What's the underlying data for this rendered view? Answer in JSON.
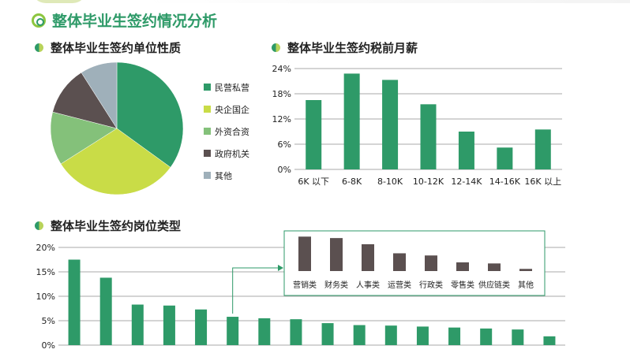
{
  "colors": {
    "green": "#2e9a68",
    "lime": "#c9dc47",
    "light_green": "#84c17a",
    "dark_brown": "#5b5050",
    "slate": "#9fb0ba"
  },
  "header": {
    "main_title": "整体毕业生签约情况分析"
  },
  "sections": {
    "unit": {
      "title": "整体毕业生签约单位性质"
    },
    "salary": {
      "title": "整体毕业生签约税前月薪"
    },
    "position": {
      "title": "整体毕业生签约岗位类型"
    }
  },
  "chart_data": [
    {
      "type": "pie",
      "labels": [
        "民营私营",
        "央企国企",
        "外资合资",
        "政府机关",
        "其他"
      ],
      "values": [
        35,
        31,
        13,
        12,
        9
      ],
      "colors": [
        "#2e9a68",
        "#c9dc47",
        "#84c17a",
        "#5b5050",
        "#9fb0ba"
      ],
      "legend_position": "right"
    },
    {
      "type": "bar",
      "categories": [
        "6K 以下",
        "6-8K",
        "8-10K",
        "10-12K",
        "12-14K",
        "14-16K",
        "16K 以上"
      ],
      "values": [
        16.5,
        22.8,
        21.3,
        15.5,
        9.0,
        5.2,
        9.5
      ],
      "yticks": [
        "24%",
        "18%",
        "12%",
        "6%",
        "0%"
      ],
      "ylim": [
        0,
        24
      ],
      "grid": true
    },
    {
      "type": "bar",
      "values": [
        17.5,
        13.8,
        8.3,
        8.1,
        7.3,
        5.8,
        5.5,
        5.3,
        4.5,
        4.1,
        4.0,
        3.8,
        3.6,
        3.4,
        3.2,
        1.8
      ],
      "yticks": [
        "20%",
        "15%",
        "10%",
        "5%",
        "0%"
      ],
      "ylim": [
        0,
        20
      ],
      "grid": true
    },
    {
      "type": "bar",
      "categories": [
        "营销类",
        "财务类",
        "人事类",
        "运营类",
        "行政类",
        "零售类",
        "供应链类",
        "其他"
      ],
      "values": [
        9.5,
        9.1,
        7.4,
        4.9,
        4.3,
        2.4,
        2.1,
        0.6
      ],
      "inset": true
    }
  ]
}
